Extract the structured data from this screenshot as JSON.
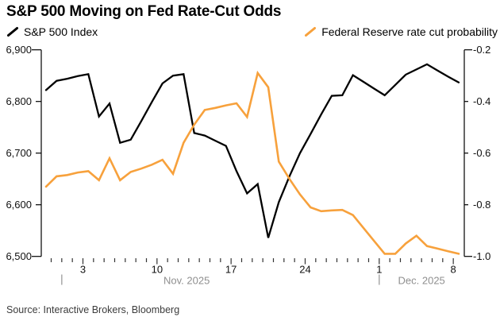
{
  "title": "S&P 500 Moving on Fed Rate-Cut Odds",
  "legend": [
    {
      "label": "S&P 500 Index",
      "color": "#000000"
    },
    {
      "label": "Federal Reserve rate cut probability",
      "color": "#F7A13C"
    }
  ],
  "source": "Source: Interactive Brokers, Bloomberg",
  "colors": {
    "sp500_line": "#000000",
    "probability_line": "#F7A13C",
    "axis": "#000000",
    "tick_text": "#111111",
    "month_text": "#8F8F8F",
    "separator": "#9B9B9B",
    "source_text": "#3C3C3C",
    "background": "#FFFFFF"
  },
  "chart_data": {
    "type": "line",
    "title": "S&P 500 Moving on Fed Rate-Cut Odds",
    "grid": false,
    "legend_position": "top",
    "x": [
      "Oct. 30",
      "Oct. 31",
      "Nov. 1",
      "Nov. 2",
      "Nov. 3",
      "Nov. 4",
      "Nov. 5",
      "Nov. 6",
      "Nov. 7",
      "Nov. 8",
      "Nov. 9",
      "Nov. 10",
      "Nov. 11",
      "Nov. 12",
      "Nov. 13",
      "Nov. 14",
      "Nov. 15",
      "Nov. 16",
      "Nov. 17",
      "Nov. 18",
      "Nov. 19",
      "Nov. 20",
      "Nov. 21",
      "Nov. 22",
      "Nov. 23",
      "Nov. 24",
      "Nov. 25",
      "Nov. 26",
      "Nov. 27",
      "Nov. 28",
      "Nov. 29",
      "Nov. 30",
      "Dec. 1",
      "Dec. 2",
      "Dec. 3",
      "Dec. 4",
      "Dec. 5",
      "Dec. 6",
      "Dec. 7",
      "Dec. 8"
    ],
    "series": [
      {
        "name": "S&P 500 Index",
        "axis": "left",
        "color": "#000000",
        "values": [
          6822,
          6840,
          6844,
          6849,
          6853,
          6771,
          6796,
          6720,
          6726,
          6762,
          6799,
          6835,
          6850,
          6853,
          6739,
          6734,
          6724,
          6714,
          6665,
          6622,
          6640,
          6536,
          6605,
          6655,
          6700,
          6737,
          6775,
          6811,
          6812,
          6851,
          6838,
          6825,
          6812,
          6832,
          6852,
          6862,
          6872,
          6860,
          6848,
          6837
        ]
      },
      {
        "name": "Federal Reserve rate cut probability",
        "axis": "right",
        "color": "#F7A13C",
        "values": [
          -0.73,
          -0.69,
          -0.685,
          -0.675,
          -0.67,
          -0.705,
          -0.62,
          -0.705,
          -0.673,
          -0.66,
          -0.645,
          -0.626,
          -0.68,
          -0.56,
          -0.49,
          -0.433,
          -0.425,
          -0.415,
          -0.407,
          -0.46,
          -0.29,
          -0.345,
          -0.633,
          -0.7,
          -0.76,
          -0.81,
          -0.825,
          -0.822,
          -0.82,
          -0.84,
          -0.89,
          -0.94,
          -0.99,
          -0.99,
          -0.95,
          -0.92,
          -0.96,
          -0.97,
          -0.98,
          -0.99
        ]
      }
    ],
    "left_axis": {
      "series": "S&P 500 Index",
      "ticks": [
        "6,900",
        "6,800",
        "6,700",
        "6,600",
        "6,500"
      ],
      "range": [
        6500,
        6900
      ]
    },
    "right_axis": {
      "series": "Federal Reserve rate cut probability",
      "ticks": [
        "-0.2",
        "-0.4",
        "-0.6",
        "-0.8",
        "-1.0"
      ],
      "range": [
        -1.0,
        -0.2
      ]
    },
    "x_axis": {
      "labels": [
        {
          "text": "3",
          "tick": 3
        },
        {
          "text": "10",
          "tick": 10
        },
        {
          "text": "17",
          "tick": 17
        },
        {
          "text": "24",
          "tick": 24
        },
        {
          "text": "1",
          "tick": 31
        },
        {
          "text": "8",
          "tick": 38
        }
      ],
      "separators": [
        {
          "tick": 1
        },
        {
          "tick": 31
        }
      ],
      "months": [
        {
          "text": "Nov. 2025",
          "anchor_tick": 12.8
        },
        {
          "text": "Dec. 2025",
          "anchor_tick": 35.0
        }
      ]
    }
  }
}
